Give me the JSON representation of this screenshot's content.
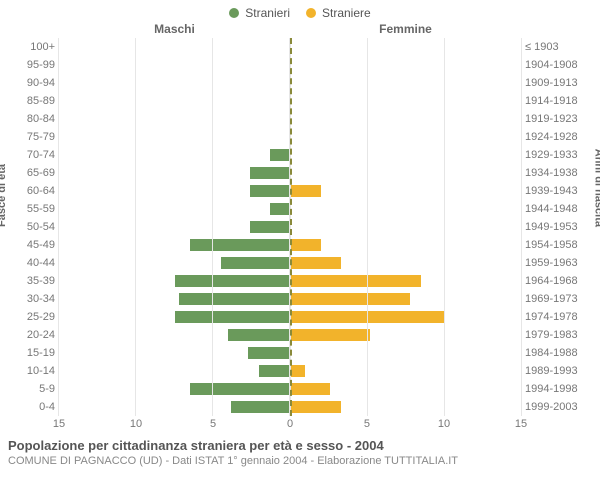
{
  "legend": {
    "male": {
      "label": "Stranieri",
      "color": "#6a9a5b"
    },
    "female": {
      "label": "Straniere",
      "color": "#f2b32b"
    }
  },
  "headers": {
    "male": "Maschi",
    "female": "Femmine"
  },
  "axis_titles": {
    "left": "Fasce di età",
    "right": "Anni di nascita"
  },
  "caption": {
    "title": "Popolazione per cittadinanza straniera per età e sesso - 2004",
    "subtitle": "COMUNE DI PAGNACCO (UD) - Dati ISTAT 1° gennaio 2004 - Elaborazione TUTTITALIA.IT"
  },
  "style": {
    "bg": "#ffffff",
    "grid_color": "#e6e6e6",
    "center_line_color": "#8a8a3a",
    "text_color": "#555555",
    "label_fontsize": 11,
    "title_fontsize": 13,
    "x_max": 15,
    "x_ticks": [
      0,
      5,
      10,
      15
    ],
    "bar_height_ratio": 0.7
  },
  "rows": [
    {
      "age": "100+",
      "birth": "≤ 1903",
      "m": 0,
      "f": 0
    },
    {
      "age": "95-99",
      "birth": "1904-1908",
      "m": 0,
      "f": 0
    },
    {
      "age": "90-94",
      "birth": "1909-1913",
      "m": 0,
      "f": 0
    },
    {
      "age": "85-89",
      "birth": "1914-1918",
      "m": 0,
      "f": 0
    },
    {
      "age": "80-84",
      "birth": "1919-1923",
      "m": 0,
      "f": 0
    },
    {
      "age": "75-79",
      "birth": "1924-1928",
      "m": 0,
      "f": 0
    },
    {
      "age": "70-74",
      "birth": "1929-1933",
      "m": 1.3,
      "f": 0
    },
    {
      "age": "65-69",
      "birth": "1934-1938",
      "m": 2.6,
      "f": 0
    },
    {
      "age": "60-64",
      "birth": "1939-1943",
      "m": 2.6,
      "f": 2.0
    },
    {
      "age": "55-59",
      "birth": "1944-1948",
      "m": 1.3,
      "f": 0
    },
    {
      "age": "50-54",
      "birth": "1949-1953",
      "m": 2.6,
      "f": 0
    },
    {
      "age": "45-49",
      "birth": "1954-1958",
      "m": 6.5,
      "f": 2.0
    },
    {
      "age": "40-44",
      "birth": "1959-1963",
      "m": 4.5,
      "f": 3.3
    },
    {
      "age": "35-39",
      "birth": "1964-1968",
      "m": 7.5,
      "f": 8.5
    },
    {
      "age": "30-34",
      "birth": "1969-1973",
      "m": 7.2,
      "f": 7.8
    },
    {
      "age": "25-29",
      "birth": "1974-1978",
      "m": 7.5,
      "f": 10.0
    },
    {
      "age": "20-24",
      "birth": "1979-1983",
      "m": 4.0,
      "f": 5.2
    },
    {
      "age": "15-19",
      "birth": "1984-1988",
      "m": 2.7,
      "f": 0
    },
    {
      "age": "10-14",
      "birth": "1989-1993",
      "m": 2.0,
      "f": 1.0
    },
    {
      "age": "5-9",
      "birth": "1994-1998",
      "m": 6.5,
      "f": 2.6
    },
    {
      "age": "0-4",
      "birth": "1999-2003",
      "m": 3.8,
      "f": 3.3
    }
  ]
}
